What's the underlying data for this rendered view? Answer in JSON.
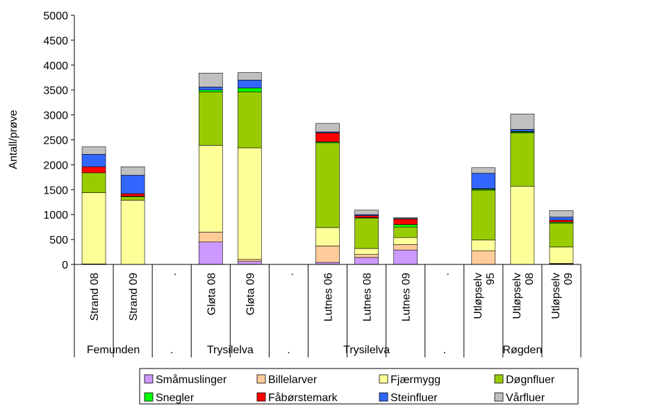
{
  "chart_data": {
    "type": "bar",
    "stacked": true,
    "ylabel": "Antall/prøve",
    "ylim": [
      0,
      5000
    ],
    "yticks": [
      0,
      500,
      1000,
      1500,
      2000,
      2500,
      3000,
      3500,
      4000,
      4500,
      5000
    ],
    "grid": false,
    "legend_position": "bottom",
    "categories": [
      "Strand 08",
      "Strand 09",
      ".",
      "Gløta 08",
      "Gløta 09",
      ".",
      "Lutnes 06",
      "Lutnes 08",
      "Lutnes 09",
      ".",
      "Utløpselv 95",
      "Utløpselv 08",
      "Utløpselv 09"
    ],
    "category_lines": [
      [
        "Strand 08"
      ],
      [
        "Strand 09"
      ],
      [
        "."
      ],
      [
        "Gløta 08"
      ],
      [
        "Gløta 09"
      ],
      [
        "."
      ],
      [
        "Lutnes 06"
      ],
      [
        "Lutnes 08"
      ],
      [
        "Lutnes 09"
      ],
      [
        "."
      ],
      [
        "Utløpselv",
        "95"
      ],
      [
        "Utløpselv",
        "08"
      ],
      [
        "Utløpselv",
        "09"
      ]
    ],
    "groups": [
      {
        "label": "Femunden",
        "span": 2
      },
      {
        "label": ".",
        "span": 1
      },
      {
        "label": "Trysilelva",
        "span": 2
      },
      {
        "label": ".",
        "span": 1
      },
      {
        "label": "Trysilelva",
        "span": 3
      },
      {
        "label": ".",
        "span": 1
      },
      {
        "label": "Røgden",
        "span": 3
      }
    ],
    "series": [
      {
        "name": "Småmuslinger",
        "color": "#CC99FF",
        "values": [
          0,
          0,
          0,
          450,
          60,
          0,
          40,
          140,
          290,
          0,
          0,
          0,
          10
        ]
      },
      {
        "name": "Billelarver",
        "color": "#FFCC99",
        "values": [
          10,
          0,
          0,
          200,
          40,
          0,
          330,
          60,
          110,
          0,
          270,
          0,
          10
        ]
      },
      {
        "name": "Fjærmygg",
        "color": "#FFFF99",
        "values": [
          1430,
          1290,
          0,
          1740,
          2240,
          0,
          370,
          120,
          140,
          0,
          220,
          1570,
          330
        ]
      },
      {
        "name": "Døgnfluer",
        "color": "#99CC00",
        "values": [
          400,
          70,
          0,
          1070,
          1120,
          0,
          1700,
          610,
          210,
          0,
          1000,
          1070,
          480
        ]
      },
      {
        "name": "Snegler",
        "color": "#00FF00",
        "values": [
          0,
          10,
          0,
          40,
          80,
          0,
          20,
          10,
          50,
          0,
          20,
          20,
          20
        ]
      },
      {
        "name": "Fåbørstemark",
        "color": "#FF0000",
        "values": [
          120,
          50,
          0,
          0,
          0,
          0,
          180,
          40,
          110,
          0,
          10,
          10,
          40
        ]
      },
      {
        "name": "Steinfluer",
        "color": "#3366FF",
        "values": [
          250,
          370,
          0,
          60,
          160,
          0,
          20,
          20,
          10,
          0,
          310,
          40,
          60
        ]
      },
      {
        "name": "Vårfluer",
        "color": "#C0C0C0",
        "values": [
          150,
          170,
          0,
          280,
          150,
          0,
          170,
          90,
          20,
          0,
          110,
          310,
          130
        ]
      }
    ]
  }
}
